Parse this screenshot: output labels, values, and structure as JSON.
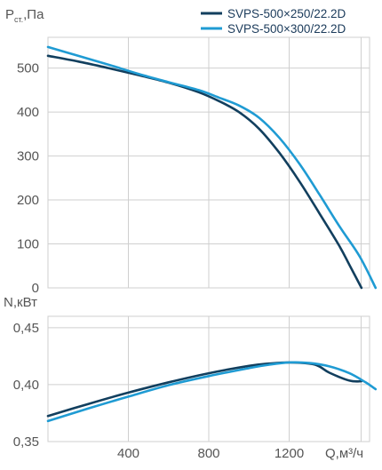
{
  "colors": {
    "series_dark": "#123f5e",
    "series_light": "#1f9bd3",
    "grid": "#cfcfcf",
    "text": "#555555"
  },
  "legend": {
    "items": [
      {
        "label": "SVPS-500×250/22.2D",
        "color": "#123f5e"
      },
      {
        "label": "SVPS-500×300/22.2D",
        "color": "#1f9bd3"
      }
    ]
  },
  "chart_data": [
    {
      "type": "line",
      "ylabel": "P",
      "ylabel_sub": "ст.",
      "ylabel_unit": ",Па",
      "xlim": [
        0,
        1600
      ],
      "ylim": [
        0,
        570
      ],
      "yticks": [
        0,
        100,
        200,
        300,
        400,
        500
      ],
      "xticks": [
        400,
        800,
        1200
      ],
      "grid": true,
      "legend_position": "top-right",
      "series": [
        {
          "name": "SVPS-500×250/22.2D",
          "color": "#123f5e",
          "x": [
            0,
            150,
            300,
            450,
            600,
            750,
            850,
            950,
            1050,
            1150,
            1250,
            1350,
            1450,
            1500,
            1560
          ],
          "y": [
            528,
            515,
            500,
            484,
            467,
            445,
            425,
            400,
            362,
            308,
            243,
            170,
            95,
            52,
            0
          ]
        },
        {
          "name": "SVPS-500×300/22.2D",
          "color": "#1f9bd3",
          "x": [
            0,
            150,
            300,
            450,
            600,
            750,
            850,
            950,
            1050,
            1150,
            1250,
            1350,
            1450,
            1550,
            1630
          ],
          "y": [
            548,
            528,
            508,
            487,
            468,
            450,
            433,
            415,
            387,
            342,
            283,
            213,
            140,
            72,
            0
          ]
        }
      ]
    },
    {
      "type": "line",
      "ylabel": "N,кВт",
      "xlabel": "Q,м³/ч",
      "xlim": [
        0,
        1600
      ],
      "ylim": [
        0.35,
        0.46
      ],
      "yticks": [
        "0,35",
        "0,40",
        "0,45"
      ],
      "ytick_values": [
        0.35,
        0.4,
        0.45
      ],
      "xticks": [
        400,
        800,
        1200
      ],
      "grid": true,
      "series": [
        {
          "name": "SVPS-500×250/22.2D",
          "color": "#123f5e",
          "x": [
            0,
            200,
            400,
            600,
            800,
            1000,
            1100,
            1200,
            1300,
            1350,
            1400,
            1500,
            1560
          ],
          "y": [
            0.3725,
            0.383,
            0.393,
            0.402,
            0.41,
            0.4165,
            0.4185,
            0.4195,
            0.4185,
            0.416,
            0.4105,
            0.4035,
            0.403
          ]
        },
        {
          "name": "SVPS-500×300/22.2D",
          "color": "#1f9bd3",
          "x": [
            0,
            200,
            400,
            600,
            800,
            1000,
            1100,
            1200,
            1300,
            1400,
            1500,
            1580,
            1630
          ],
          "y": [
            0.368,
            0.379,
            0.3895,
            0.3995,
            0.4075,
            0.4145,
            0.4175,
            0.4195,
            0.419,
            0.416,
            0.41,
            0.402,
            0.396
          ]
        }
      ]
    }
  ]
}
